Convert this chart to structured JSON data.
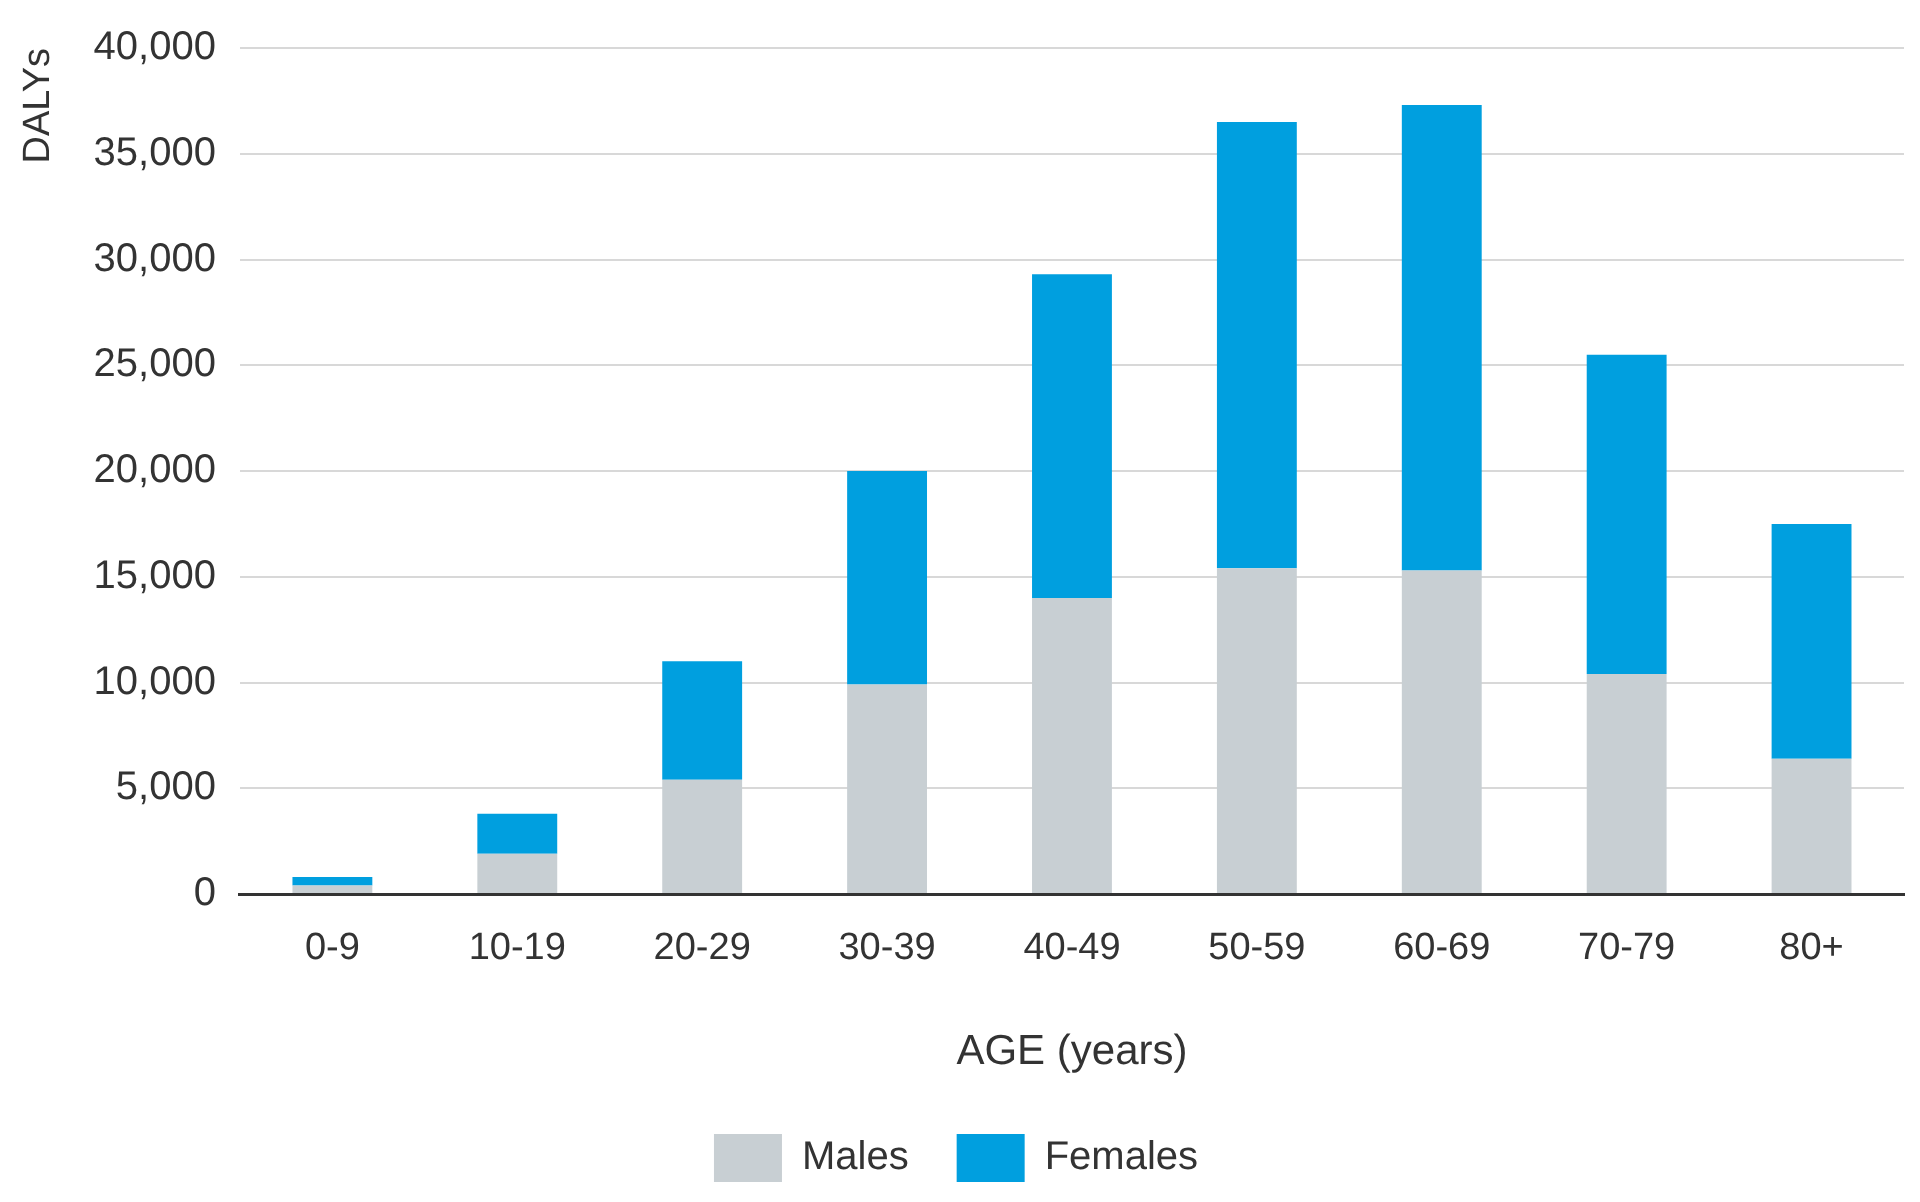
{
  "chart_data": {
    "type": "bar",
    "stacked": true,
    "xlabel": "AGE (years)",
    "ylabel": "DALYs",
    "categories": [
      "0-9",
      "10-19",
      "20-29",
      "30-39",
      "40-49",
      "50-59",
      "60-69",
      "70-79",
      "80+"
    ],
    "series": [
      {
        "name": "Males",
        "color": "#c8cfd3",
        "values": [
          400,
          1900,
          5400,
          9900,
          14000,
          15400,
          15300,
          10400,
          6400
        ]
      },
      {
        "name": "Females",
        "color": "#009fdf",
        "values": [
          400,
          1900,
          5600,
          10100,
          15300,
          21100,
          22000,
          15100,
          11100
        ]
      }
    ],
    "ylim": [
      0,
      40000
    ],
    "yticks": [
      0,
      {
        "value": 5000,
        "label": "5,000"
      },
      {
        "value": 10000,
        "label": "10,000"
      },
      {
        "value": 15000,
        "label": "15,000"
      },
      {
        "value": 20000,
        "label": "20,000"
      },
      {
        "value": 25000,
        "label": "25,000"
      },
      {
        "value": 30000,
        "label": "30,000"
      },
      {
        "value": 35000,
        "label": "35,000"
      },
      {
        "value": 40000,
        "label": "40,000"
      }
    ],
    "grid": "y",
    "legend": "bottom"
  }
}
